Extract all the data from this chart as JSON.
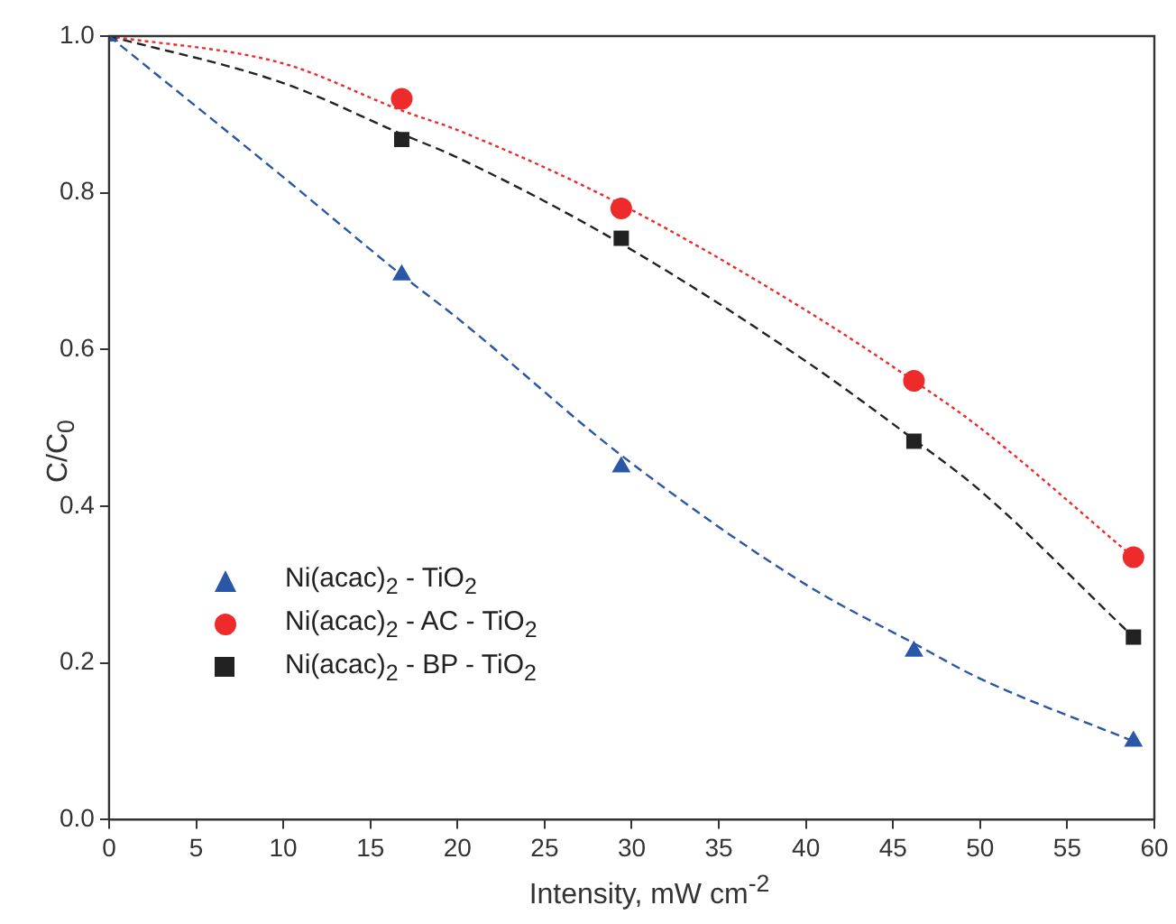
{
  "chart_data": {
    "type": "scatter",
    "xlabel": "Intensity, mW cm$^{-2}$",
    "ylabel": "C/C$_{0}$",
    "xlim": [
      0,
      60
    ],
    "xticks": [
      0,
      5,
      10,
      15,
      20,
      25,
      30,
      35,
      40,
      45,
      50,
      55,
      60
    ],
    "ylim": [
      0,
      1
    ],
    "yticks": [
      {
        "value": 0,
        "label": "0.0"
      },
      {
        "value": 0.2,
        "label": "0.2"
      },
      {
        "value": 0.4,
        "label": "0.4"
      },
      {
        "value": 0.6,
        "label": "0.6"
      },
      {
        "value": 0.8,
        "label": "0.8"
      },
      {
        "value": 1,
        "label": "1.0"
      }
    ],
    "grid": false,
    "legend": "bottom left",
    "series": [
      {
        "type": "line",
        "color": "#2a56a8",
        "line_style": "dashed",
        "marker": "none",
        "x": [
          0,
          10,
          16.8,
          20,
          29.4,
          40,
          46.2,
          50,
          58.8
        ],
        "values": [
          1,
          0.82,
          0.695,
          0.64,
          0.465,
          0.3,
          0.225,
          0.18,
          0.1
        ]
      },
      {
        "type": "line",
        "color": "#ee2b2b",
        "line_style": "dotted",
        "marker": "none",
        "x": [
          0,
          10,
          16.8,
          20,
          29.4,
          40,
          46.2,
          50,
          58.8
        ],
        "values": [
          1,
          0.965,
          0.905,
          0.88,
          0.785,
          0.65,
          0.56,
          0.5,
          0.335
        ]
      },
      {
        "type": "line",
        "color": "#222222",
        "line_style": "dashed",
        "marker": "none",
        "x": [
          0,
          10,
          16.8,
          20,
          29.4,
          40,
          46.2,
          50,
          58.8
        ],
        "values": [
          1,
          0.94,
          0.875,
          0.845,
          0.735,
          0.585,
          0.485,
          0.42,
          0.233
        ]
      },
      {
        "name": "Ni(acac)$_{2}$ - TiO$_{2}$",
        "type": "scatter",
        "color": "#2a56a8",
        "marker": "triangle",
        "x": [
          0,
          16.8,
          29.4,
          46.2,
          58.8
        ],
        "values": [
          1,
          0.695,
          0.45,
          0.215,
          0.1
        ]
      },
      {
        "name": "Ni(acac)$_{2}$ - AC - TiO$_{2}$",
        "type": "scatter",
        "color": "#ee2b2b",
        "marker": "circle",
        "x": [
          16.8,
          29.4,
          46.2,
          58.8
        ],
        "values": [
          0.92,
          0.78,
          0.56,
          0.335
        ]
      },
      {
        "name": "Ni(acac)$_{2}$ - BP - TiO$_{2}$",
        "type": "scatter",
        "color": "#222222",
        "marker": "square",
        "x": [
          16.8,
          29.4,
          46.2,
          58.8
        ],
        "values": [
          0.868,
          0.742,
          0.483,
          0.233
        ]
      }
    ]
  }
}
